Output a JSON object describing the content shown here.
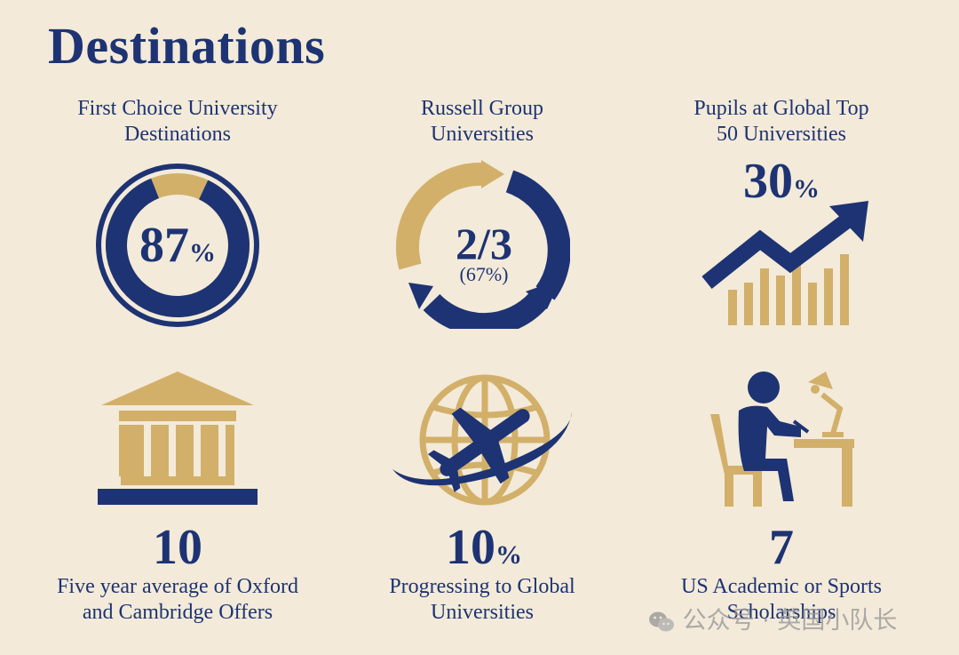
{
  "title": "Destinations",
  "colors": {
    "navy": "#1d3373",
    "gold": "#d2b06a",
    "background": "#f3ead9"
  },
  "stats": [
    {
      "label_lines": [
        "First Choice University",
        "Destinations"
      ],
      "value": "87",
      "unit": "%",
      "ring_fill_fraction": 0.87,
      "icon": "progress-ring-icon"
    },
    {
      "label_lines": [
        "Russell Group",
        "Universities"
      ],
      "value": "2/3",
      "sub_value": "(67%)",
      "icon": "circular-arrows-icon"
    },
    {
      "label_lines": [
        "Pupils at Global Top",
        "50 Universities"
      ],
      "value": "30",
      "unit": "%",
      "icon": "growth-chart-icon"
    },
    {
      "value": "10",
      "label_lines": [
        "Five year average of Oxford",
        "and Cambridge Offers"
      ],
      "icon": "university-building-icon"
    },
    {
      "value": "10",
      "unit": "%",
      "label_lines": [
        "Progressing to Global",
        "Universities"
      ],
      "icon": "globe-airplane-icon"
    },
    {
      "value": "7",
      "label_lines": [
        "US Academic or Sports",
        "Scholarships"
      ],
      "icon": "student-desk-icon"
    }
  ],
  "watermark": {
    "text": "公众号 · 英国小队长",
    "icon": "wechat-icon"
  }
}
